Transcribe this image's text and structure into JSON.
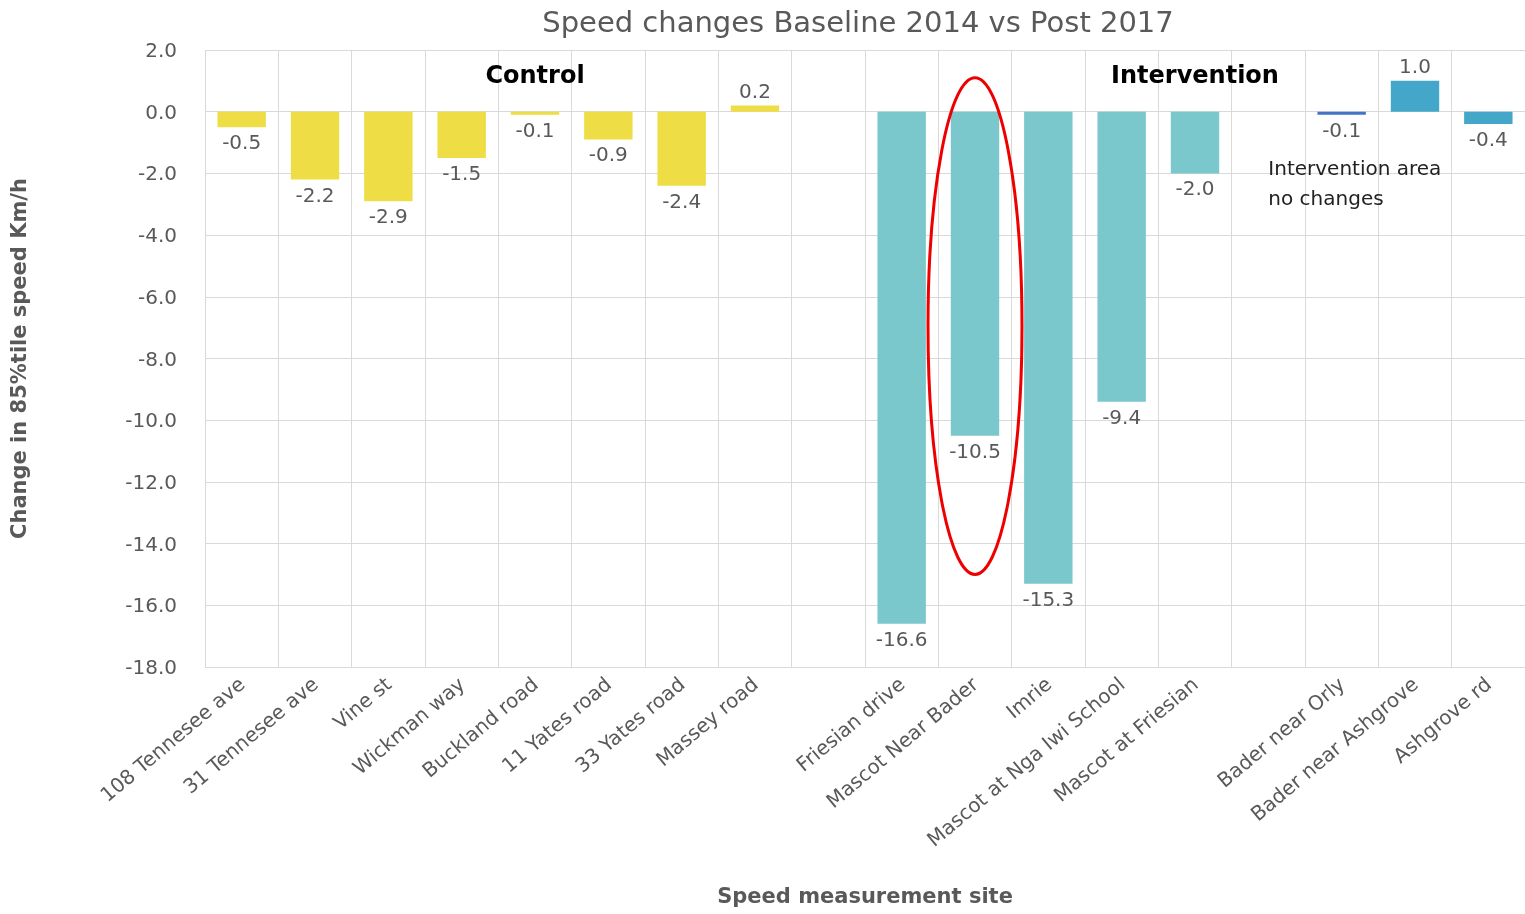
{
  "chart_data": {
    "type": "bar",
    "title": "Speed changes Baseline 2014 vs Post 2017",
    "xlabel": "Speed measurement site",
    "ylabel": "Change in 85%tile speed Km/h",
    "categories": [
      "108 Tennesee ave",
      "31 Tennesee ave",
      "Vine st",
      "Wickman way",
      "Buckland road",
      "11 Yates road",
      "33 Yates road",
      "Massey road",
      null,
      "Friesian drive",
      "Mascot Near Bader",
      "Imrie",
      "Mascot at Nga Iwi School",
      "Mascot at Friesian",
      null,
      "Bader near Orly",
      "Bader near Ashgrove",
      "Ashgrove rd"
    ],
    "values": [
      -0.5,
      -2.2,
      -2.9,
      -1.5,
      -0.1,
      -0.9,
      -2.4,
      0.2,
      null,
      -16.6,
      -10.5,
      -15.3,
      -9.4,
      -2.0,
      null,
      -0.1,
      1.0,
      -0.4
    ],
    "value_labels": [
      "-0.5",
      "-2.2",
      "-2.9",
      "-1.5",
      "-0.1",
      "-0.9",
      "-2.4",
      "0.2",
      null,
      "-16.6",
      "-10.5",
      "-15.3",
      "-9.4",
      "-2.0",
      null,
      "-0.1",
      "1.0",
      "-0.4"
    ],
    "colors": [
      "#eedd44",
      "#eedd44",
      "#eedd44",
      "#eedd44",
      "#eedd44",
      "#eedd44",
      "#eedd44",
      "#eedd44",
      null,
      "#7ac7cc",
      "#7ac7cc",
      "#7ac7cc",
      "#7ac7cc",
      "#7ac7cc",
      null,
      "#4472c4",
      "#44a6c8",
      "#44a6c8"
    ],
    "ylim": [
      -18,
      2
    ],
    "yticks": [
      {
        "value": 2,
        "label": "2.0"
      },
      {
        "value": 0,
        "label": "0.0"
      },
      {
        "value": -2,
        "label": "-2.0"
      },
      {
        "value": -4,
        "label": "-4.0"
      },
      {
        "value": -6,
        "label": "-6.0"
      },
      {
        "value": -8,
        "label": "-8.0"
      },
      {
        "value": -10,
        "label": "-10.0"
      },
      {
        "value": -12,
        "label": "-12.0"
      },
      {
        "value": -14,
        "label": "-14.0"
      },
      {
        "value": -16,
        "label": "-16.0"
      },
      {
        "value": -18,
        "label": "-18.0"
      }
    ],
    "annotations": [
      "Control",
      "Intervention",
      "Intervention area\nno changes"
    ],
    "grid": true
  }
}
